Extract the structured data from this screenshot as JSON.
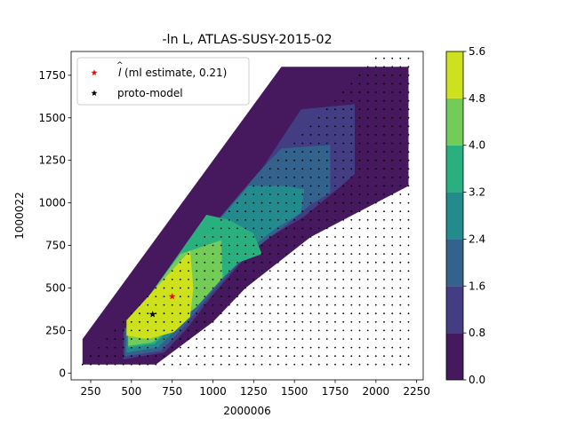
{
  "chart_data": {
    "type": "contourf",
    "title": "-ln L, ATLAS-SUSY-2015-02",
    "xlabel": "2000006",
    "ylabel": "1000022",
    "xlim": [
      130,
      2290
    ],
    "ylim": [
      -40,
      1890
    ],
    "x_ticks": [
      250,
      500,
      750,
      1000,
      1250,
      1500,
      1750,
      2000,
      2250
    ],
    "y_ticks": [
      0,
      250,
      500,
      750,
      1000,
      1250,
      1500,
      1750
    ],
    "x_tick_labels": [
      "250",
      "500",
      "750",
      "1000",
      "1250",
      "1500",
      "1750",
      "2000",
      "2250"
    ],
    "y_tick_labels": [
      "0",
      "250",
      "500",
      "750",
      "1000",
      "1250",
      "1500",
      "1750"
    ],
    "colorbar": {
      "levels": [
        0.0,
        0.8,
        1.6,
        2.4,
        3.2,
        4.0,
        4.8,
        5.6
      ],
      "tick_labels": [
        "0.0",
        "0.8",
        "1.6",
        "2.4",
        "3.2",
        "4.0",
        "4.8",
        "5.6"
      ],
      "colors": [
        "#46195e",
        "#433d84",
        "#33638d",
        "#238a8d",
        "#2ab07e",
        "#72cc57",
        "#cde11d"
      ]
    },
    "regions": [
      {
        "level": 0,
        "polygon": [
          [
            200,
            50
          ],
          [
            200,
            200
          ],
          [
            1420,
            1800
          ],
          [
            2200,
            1800
          ],
          [
            2200,
            1100
          ],
          [
            1600,
            800
          ],
          [
            1200,
            500
          ],
          [
            1000,
            300
          ],
          [
            650,
            50
          ]
        ]
      },
      {
        "level": 1,
        "polygon": [
          [
            450,
            80
          ],
          [
            450,
            250
          ],
          [
            1300,
            1200
          ],
          [
            1540,
            1550
          ],
          [
            1870,
            1580
          ],
          [
            1870,
            1170
          ],
          [
            1800,
            1110
          ],
          [
            1560,
            920
          ],
          [
            1350,
            800
          ],
          [
            1200,
            680
          ],
          [
            1000,
            460
          ],
          [
            830,
            250
          ],
          [
            700,
            120
          ]
        ]
      },
      {
        "level": 2,
        "polygon": [
          [
            460,
            100
          ],
          [
            460,
            260
          ],
          [
            1280,
            1180
          ],
          [
            1420,
            1320
          ],
          [
            1720,
            1340
          ],
          [
            1720,
            1060
          ],
          [
            1600,
            990
          ],
          [
            1450,
            870
          ],
          [
            1200,
            690
          ],
          [
            1000,
            480
          ],
          [
            810,
            260
          ],
          [
            680,
            130
          ]
        ]
      },
      {
        "level": 3,
        "polygon": [
          [
            470,
            120
          ],
          [
            470,
            270
          ],
          [
            1220,
            1100
          ],
          [
            1440,
            1100
          ],
          [
            1560,
            1080
          ],
          [
            1540,
            940
          ],
          [
            1400,
            860
          ],
          [
            1150,
            680
          ],
          [
            960,
            480
          ],
          [
            790,
            270
          ],
          [
            660,
            150
          ]
        ]
      },
      {
        "level": 4,
        "polygon": [
          [
            480,
            150
          ],
          [
            480,
            280
          ],
          [
            960,
            930
          ],
          [
            1100,
            900
          ],
          [
            1250,
            820
          ],
          [
            1300,
            700
          ],
          [
            1160,
            650
          ],
          [
            960,
            470
          ],
          [
            760,
            280
          ],
          [
            640,
            170
          ]
        ]
      },
      {
        "level": 5,
        "polygon": [
          [
            480,
            160
          ],
          [
            480,
            290
          ],
          [
            800,
            700
          ],
          [
            1050,
            780
          ],
          [
            1060,
            560
          ],
          [
            900,
            390
          ],
          [
            760,
            280
          ],
          [
            630,
            180
          ]
        ]
      },
      {
        "level": 6,
        "polygon": [
          [
            470,
            220
          ],
          [
            470,
            310
          ],
          [
            860,
            720
          ],
          [
            880,
            500
          ],
          [
            860,
            330
          ],
          [
            760,
            240
          ],
          [
            600,
            200
          ]
        ]
      }
    ],
    "grid_points": {
      "x_start": 200,
      "x_end": 2200,
      "x_step": 50,
      "y_start": 50,
      "y_step": 50,
      "min_dx": 150
    },
    "markers": [
      {
        "name": "ml_estimate",
        "x": 750,
        "y": 450,
        "color": "#ff0000"
      },
      {
        "name": "proto_model",
        "x": 630,
        "y": 345,
        "color": "#000000"
      }
    ],
    "legend": {
      "placement": "upper-left",
      "entries": [
        {
          "label": "(ml estimate, 0.21)",
          "math_symbol": "l",
          "color": "#ff0000",
          "marker": "star"
        },
        {
          "label": "proto-model",
          "color": "#000000",
          "marker": "star"
        }
      ]
    }
  }
}
